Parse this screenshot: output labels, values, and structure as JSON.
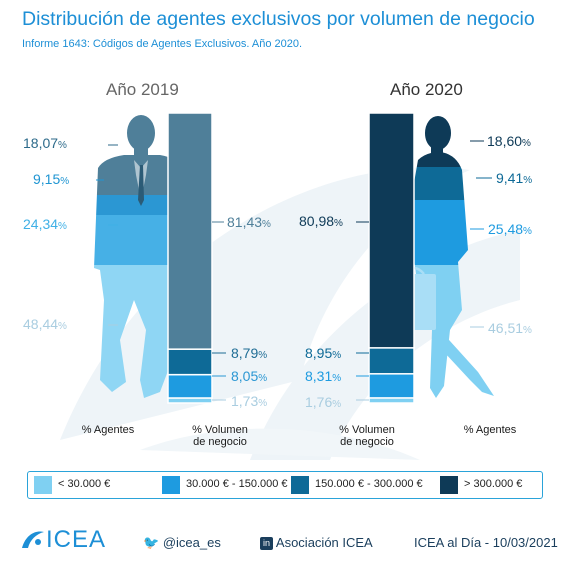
{
  "header": {
    "title": "Distribución de agentes exclusivos por volumen de negocio",
    "subtitle": "Informe 1643: Códigos de Agentes Exclusivos. Año 2020."
  },
  "colors": {
    "c1": "#7fd0f2",
    "c2": "#1e9be0",
    "c3": "#0e6a97",
    "c4": "#0e3a57",
    "panel2019": "#4f7f99",
    "text_light": "#8fc4dd",
    "text_mid": "#1f95d2",
    "text_dark": "#2c6a8a",
    "text_darkest": "#0e3a57"
  },
  "icons": [
    "male-figure-icon",
    "female-figure-icon",
    "briefcase-icon",
    "icea-logo-icon",
    "twitter-icon",
    "linkedin-icon"
  ],
  "chart_data": [
    {
      "type": "stacked-bar",
      "panel": "Año 2019",
      "categories": [
        "< 30.000 €",
        "30.000 € - 150.000 €",
        "150.000 € - 300.000 €",
        "> 300.000 €"
      ],
      "series": [
        {
          "name": "% Agentes",
          "values": [
            48.44,
            24.34,
            9.15,
            18.07
          ]
        },
        {
          "name": "% Volumen de negocio",
          "values": [
            1.73,
            8.05,
            8.79,
            81.43
          ]
        }
      ],
      "labels": {
        "agentes": [
          "48,44",
          "24,34",
          "9,15",
          "18,07"
        ],
        "volumen": [
          "1,73",
          "8,05",
          "8,79",
          "81,43"
        ]
      }
    },
    {
      "type": "stacked-bar",
      "panel": "Año 2020",
      "categories": [
        "< 30.000 €",
        "30.000 € - 150.000 €",
        "150.000 € - 300.000 €",
        "> 300.000 €"
      ],
      "series": [
        {
          "name": "% Agentes",
          "values": [
            46.51,
            25.48,
            9.41,
            18.6
          ]
        },
        {
          "name": "% Volumen de negocio",
          "values": [
            1.76,
            8.31,
            8.95,
            80.98
          ]
        }
      ],
      "labels": {
        "agentes": [
          "46,51",
          "25,48",
          "9,41",
          "18,60"
        ],
        "volumen": [
          "1,76",
          "8,31",
          "8,95",
          "80,98"
        ]
      }
    }
  ],
  "panels": {
    "y2019": {
      "year": "Año 2019",
      "cap_agentes": "% Agentes",
      "cap_volumen": [
        "% Volumen",
        "de negocio"
      ]
    },
    "y2020": {
      "year": "Año 2020",
      "cap_volumen": [
        "% Volumen",
        "de negocio"
      ],
      "cap_agentes": "% Agentes"
    }
  },
  "legend": [
    "< 30.000 €",
    "30.000 € - 150.000 €",
    "150.000 € - 300.000 €",
    "> 300.000 €"
  ],
  "pct_sign": "%",
  "footer": {
    "logo": "ICEA",
    "twitter": "@icea_es",
    "linkedin": "Asociación ICEA",
    "date": "ICEA al Día - 10/03/2021"
  }
}
